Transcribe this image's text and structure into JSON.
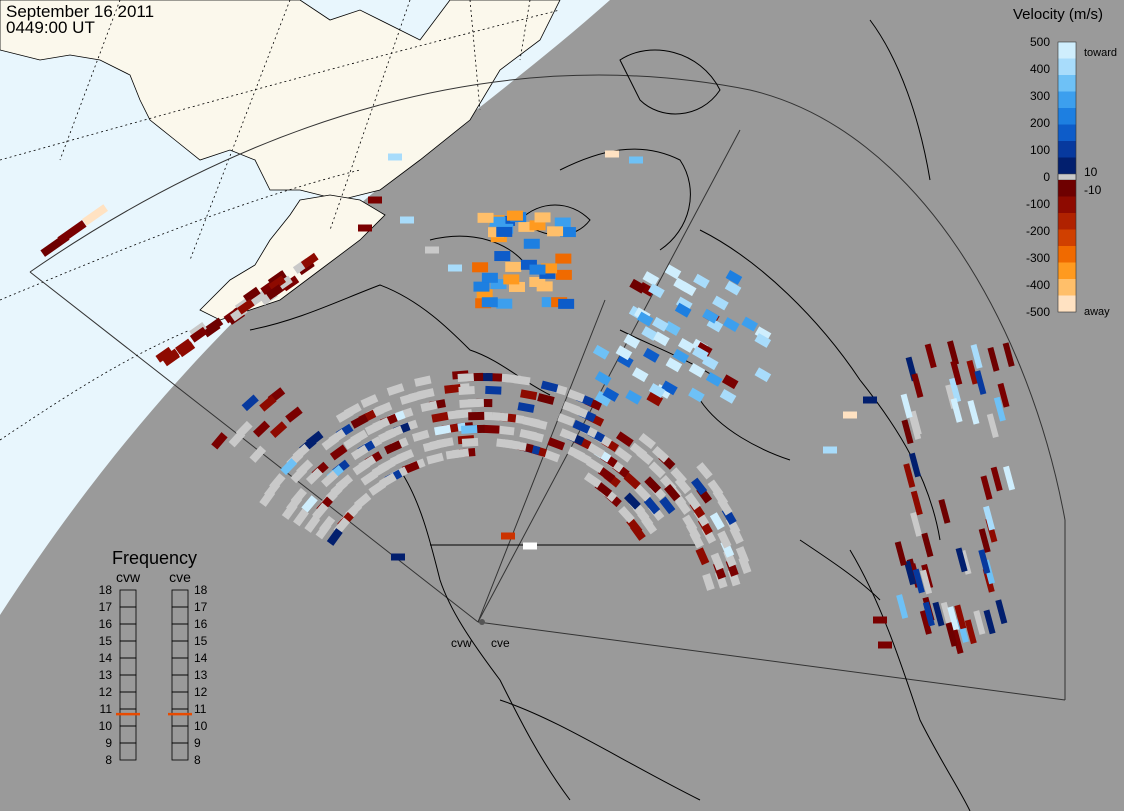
{
  "header": {
    "date": "September 16 2011",
    "time": "0449:00 UT"
  },
  "velocity_legend": {
    "title": "Velocity (m/s)",
    "toward_label": "toward",
    "away_label": "away",
    "tick_values": [
      "500",
      "400",
      "300",
      "200",
      "100",
      "10",
      "0",
      "-10",
      "-100",
      "-200",
      "-300",
      "-400",
      "-500"
    ],
    "colors_toward": [
      "#cfeefd",
      "#a8dcfb",
      "#6ec1f6",
      "#3c9fee",
      "#1d7fe1",
      "#0d5cc9",
      "#07399e",
      "#021f6e"
    ],
    "colors_away": [
      "#6e0000",
      "#8e0a00",
      "#b02200",
      "#d04000",
      "#f06a00",
      "#ff9a1f",
      "#ffbf6a",
      "#ffe2c2"
    ]
  },
  "frequency": {
    "title": "Frequency",
    "radars": [
      {
        "name": "cvw",
        "value": 10.7
      },
      {
        "name": "cve",
        "value": 10.7
      }
    ],
    "scale": [
      "18",
      "17",
      "16",
      "15",
      "14",
      "13",
      "12",
      "11",
      "10",
      "9",
      "8"
    ],
    "marker_color": "#e84a00"
  },
  "sites": {
    "cvw": "cvw",
    "cve": "cve"
  },
  "colors": {
    "background_gray": "#9a9a9a",
    "daylight_sky": "#e8f6fd",
    "land": "#fbf8ec",
    "ground_scatter": "#c9c9c9"
  }
}
